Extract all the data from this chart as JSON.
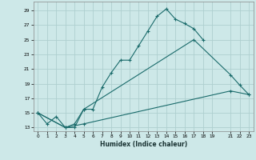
{
  "xlabel": "Humidex (Indice chaleur)",
  "xlim": [
    -0.5,
    23.5
  ],
  "ylim": [
    12.5,
    30.2
  ],
  "xticks": [
    0,
    1,
    2,
    3,
    4,
    5,
    6,
    7,
    8,
    9,
    10,
    11,
    12,
    13,
    14,
    15,
    16,
    17,
    18,
    19,
    21,
    22,
    23
  ],
  "yticks": [
    13,
    15,
    17,
    19,
    21,
    23,
    25,
    27,
    29
  ],
  "bg_color": "#cde8e8",
  "line_color": "#1a6b6b",
  "grid_color": "#aed0d0",
  "line1_x": [
    0,
    1,
    2,
    3,
    4,
    5,
    6,
    7,
    8,
    9,
    10,
    11,
    12,
    13,
    14,
    15,
    16,
    17,
    18
  ],
  "line1_y": [
    15,
    13.5,
    14.5,
    13,
    13.5,
    15.5,
    15.5,
    18.5,
    20.5,
    22.2,
    22.2,
    24.2,
    26.2,
    28.2,
    29.2,
    27.8,
    27.2,
    26.5,
    25
  ],
  "line2_x": [
    0,
    3,
    4,
    5,
    17,
    21,
    22,
    23
  ],
  "line2_y": [
    15,
    13,
    13,
    15.5,
    25,
    20.2,
    18.8,
    17.5
  ],
  "line3_x": [
    0,
    3,
    5,
    21,
    23
  ],
  "line3_y": [
    15,
    13,
    13.5,
    18,
    17.5
  ]
}
